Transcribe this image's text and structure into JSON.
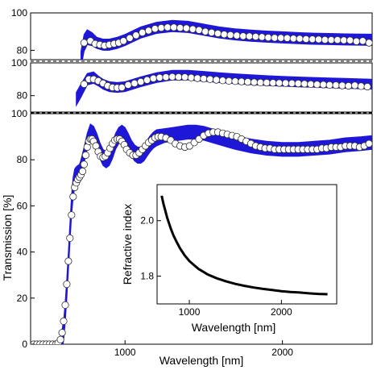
{
  "chart_data": [
    {
      "type": "scatter",
      "panel": "top",
      "ylim": [
        75,
        100
      ],
      "xlim": [
        400,
        2570
      ],
      "y_ticks": [
        "100",
        "80"
      ],
      "tick_values": [
        100,
        80
      ],
      "series": [
        {
          "kind": "band",
          "color": "#1f17d8",
          "x": [
            720,
            740,
            760,
            790,
            820,
            860,
            900,
            950,
            1000,
            1100,
            1200,
            1300,
            1400,
            1500,
            1600,
            1700,
            1800,
            1900,
            2000,
            2100,
            2200,
            2300,
            2400,
            2500,
            2570
          ],
          "y": [
            75,
            84,
            87,
            86,
            84,
            83,
            83,
            84,
            85.5,
            89.5,
            92,
            93,
            92.5,
            91,
            89.5,
            88.5,
            87.8,
            87.3,
            86.9,
            86.5,
            86.2,
            86,
            85.8,
            85.7,
            85.6
          ],
          "width": [
            4.5,
            4.5,
            4,
            3.5,
            3,
            3,
            3,
            3,
            3,
            3,
            3,
            3,
            3,
            3,
            3,
            3,
            3,
            3,
            3,
            3,
            3,
            3,
            3,
            3,
            3
          ]
        },
        {
          "kind": "points",
          "color": "#ffffff",
          "x": [
            740,
            780,
            810,
            840,
            870,
            900,
            930,
            960,
            990,
            1030,
            1070,
            1110,
            1150,
            1190,
            1230,
            1270,
            1310,
            1350,
            1390,
            1430,
            1470,
            1510,
            1550,
            1590,
            1630,
            1670,
            1710,
            1750,
            1790,
            1830,
            1870,
            1910,
            1950,
            1990,
            2030,
            2070,
            2110,
            2150,
            2190,
            2230,
            2270,
            2310,
            2350,
            2390,
            2430,
            2470,
            2510,
            2550
          ],
          "y": [
            84,
            85,
            83.5,
            83,
            82.5,
            83,
            83.5,
            84,
            85,
            86.5,
            88,
            89.5,
            90.5,
            91.5,
            92,
            92.3,
            92.3,
            92,
            91.8,
            91.3,
            90.8,
            90,
            89.5,
            89,
            88.5,
            88.2,
            87.9,
            87.6,
            87.5,
            87.3,
            87.1,
            86.8,
            86.7,
            86.6,
            86.5,
            86.3,
            86.2,
            86,
            85.9,
            85.8,
            85.6,
            85.5,
            85.5,
            85.4,
            85.3,
            84.8,
            85,
            84
          ]
        }
      ]
    },
    {
      "type": "scatter",
      "panel": "middle",
      "ylim": [
        70,
        100
      ],
      "xlim": [
        400,
        2570
      ],
      "y_ticks": [
        "100",
        "80"
      ],
      "tick_values": [
        100,
        80
      ],
      "series": [
        {
          "kind": "band",
          "color": "#1f17d8",
          "x": [
            690,
            720,
            760,
            800,
            830,
            860,
            900,
            950,
            1000,
            1100,
            1200,
            1300,
            1400,
            1500,
            1600,
            1700,
            1800,
            1900,
            2000,
            2100,
            2200,
            2300,
            2400,
            2500,
            2570
          ],
          "y": [
            78,
            83,
            90,
            91,
            89,
            87,
            85.5,
            85,
            85.5,
            88.5,
            91,
            92.5,
            92.5,
            91.8,
            91,
            90.3,
            89.7,
            89.2,
            88.8,
            88.4,
            88.1,
            87.8,
            87.5,
            87.2,
            87
          ],
          "width": [
            4,
            4,
            3.5,
            3.5,
            3,
            3,
            3,
            3,
            3,
            3,
            3,
            3,
            3,
            3,
            3,
            3,
            3,
            3,
            3,
            3,
            3,
            3,
            3,
            3,
            3
          ]
        },
        {
          "kind": "points",
          "color": "#ffffff",
          "x": [
            740,
            770,
            800,
            830,
            860,
            890,
            920,
            950,
            980,
            1020,
            1060,
            1100,
            1140,
            1180,
            1220,
            1260,
            1300,
            1340,
            1380,
            1420,
            1460,
            1500,
            1540,
            1580,
            1620,
            1660,
            1700,
            1740,
            1780,
            1820,
            1860,
            1900,
            1940,
            1980,
            2020,
            2060,
            2100,
            2140,
            2180,
            2220,
            2260,
            2300,
            2340,
            2380,
            2420,
            2460,
            2500,
            2540
          ],
          "y": [
            87,
            90,
            90,
            89,
            87.5,
            86,
            85,
            84.8,
            85,
            86.5,
            87.5,
            88.5,
            89.5,
            90.5,
            91,
            91.3,
            91.5,
            91.4,
            91.3,
            91,
            90.6,
            90.3,
            90,
            89.6,
            89.3,
            89,
            88.8,
            88.6,
            88.4,
            88.2,
            88,
            87.9,
            87.8,
            87.7,
            87.6,
            87.5,
            87.4,
            87.2,
            87,
            86.8,
            86.7,
            86.5,
            86.4,
            86.2,
            86,
            86.3,
            85.8,
            85.5
          ]
        }
      ]
    },
    {
      "type": "scatter",
      "panel": "main",
      "xlabel": "Wavelength [nm]",
      "ylabel": "Transmission [%]",
      "xlim": [
        400,
        2570
      ],
      "ylim": [
        0,
        100
      ],
      "x_tick_values": [
        1000,
        2000
      ],
      "x_ticks": [
        "1000",
        "2000"
      ],
      "y_tick_values": [
        0,
        20,
        40,
        60,
        80,
        100
      ],
      "y_ticks": [
        "0",
        "20",
        "40",
        "60",
        "80",
        "100"
      ],
      "series": [
        {
          "kind": "band",
          "color": "#1f17d8",
          "x": [
            590,
            600,
            610,
            620,
            630,
            640,
            650,
            660,
            670,
            680,
            690,
            700,
            710,
            720,
            740,
            760,
            780,
            800,
            820,
            840,
            860,
            880,
            900,
            920,
            940,
            960,
            980,
            1000,
            1020,
            1040,
            1060,
            1080,
            1100,
            1120,
            1140,
            1160,
            1180,
            1200,
            1250,
            1300,
            1350,
            1400,
            1450,
            1500,
            1550,
            1600,
            1650,
            1700,
            1800,
            1900,
            2000,
            2100,
            2200,
            2300,
            2400,
            2500,
            2570
          ],
          "y": [
            0,
            2,
            6,
            14,
            24,
            36,
            48,
            60,
            68,
            72,
            73,
            73.5,
            74,
            76,
            82,
            88,
            92,
            91,
            88,
            84,
            81,
            80,
            81,
            84,
            88,
            90.5,
            91.5,
            90.5,
            88,
            85,
            83,
            82,
            82,
            83,
            85,
            87,
            88.5,
            89.5,
            90.5,
            91,
            91.5,
            92,
            92,
            91.5,
            90.5,
            89.5,
            88.5,
            87.5,
            86,
            85,
            84.5,
            84.5,
            85,
            85.5,
            86.5,
            87,
            87.5
          ],
          "width": [
            4,
            4.5,
            4.5,
            4.5,
            4.5,
            4.5,
            4.5,
            4.5,
            4.5,
            4,
            4,
            4,
            4,
            4,
            3.5,
            3.5,
            3.5,
            3.5,
            3.5,
            3.5,
            3.5,
            3.5,
            3.5,
            3.5,
            3.5,
            3.5,
            3.5,
            3.5,
            3.5,
            3.5,
            3.5,
            3.5,
            3.5,
            3.5,
            3.5,
            3.5,
            3.5,
            3.5,
            3,
            3,
            3,
            3,
            3,
            3,
            3,
            3,
            3,
            3,
            3,
            3,
            3,
            3,
            3,
            3,
            3,
            3,
            3
          ]
        },
        {
          "kind": "points",
          "color": "#ffffff",
          "x": [
            420,
            440,
            460,
            480,
            500,
            520,
            540,
            560,
            575,
            590,
            600,
            610,
            620,
            630,
            640,
            650,
            660,
            670,
            680,
            690,
            700,
            710,
            720,
            730,
            740,
            750,
            760,
            770,
            780,
            790,
            800,
            815,
            830,
            845,
            860,
            875,
            890,
            905,
            920,
            935,
            950,
            965,
            980,
            995,
            1010,
            1030,
            1050,
            1070,
            1090,
            1110,
            1130,
            1150,
            1170,
            1190,
            1210,
            1230,
            1260,
            1290,
            1320,
            1350,
            1380,
            1410,
            1440,
            1470,
            1500,
            1530,
            1560,
            1590,
            1620,
            1650,
            1680,
            1710,
            1740,
            1770,
            1800,
            1830,
            1860,
            1890,
            1920,
            1950,
            1980,
            2010,
            2040,
            2070,
            2100,
            2130,
            2160,
            2190,
            2220,
            2250,
            2280,
            2310,
            2340,
            2370,
            2400,
            2430,
            2460,
            2490,
            2520,
            2550
          ],
          "y": [
            0,
            0,
            0,
            0,
            0,
            0,
            0,
            0,
            0.5,
            2,
            5,
            10,
            17,
            26,
            36,
            46,
            56,
            64,
            68,
            70,
            71.5,
            72.5,
            73.5,
            75,
            78,
            82,
            85.5,
            88,
            89,
            89,
            88,
            86,
            83.5,
            81.5,
            81,
            81.5,
            83,
            85,
            87,
            88.5,
            89,
            89,
            88,
            86.5,
            84.5,
            83,
            82,
            82,
            83,
            84.5,
            86,
            87.5,
            88.5,
            89.5,
            90,
            90,
            89.5,
            88.5,
            87,
            86,
            85.5,
            86,
            87.5,
            89,
            90.5,
            91.5,
            92,
            92,
            91.5,
            91,
            90.5,
            90,
            89,
            88,
            87,
            86,
            85.5,
            85,
            85,
            84.5,
            84.5,
            84.5,
            84.5,
            84.5,
            84.5,
            84.5,
            84.5,
            84.5,
            84.5,
            85,
            85,
            85.5,
            85.5,
            85.5,
            86,
            86,
            86,
            85.5,
            86,
            87
          ]
        }
      ]
    },
    {
      "type": "line",
      "panel": "inset",
      "xlabel": "Wavelength [nm]",
      "ylabel": "Refractive index",
      "xlim": [
        650,
        2600
      ],
      "ylim": [
        1.7,
        2.13
      ],
      "x_tick_values": [
        1000,
        2000
      ],
      "x_ticks": [
        "1000",
        "2000"
      ],
      "y_tick_values": [
        1.8,
        2.0
      ],
      "y_ticks": [
        "1.8",
        "2.0"
      ],
      "series": [
        {
          "color": "#000000",
          "x": [
            700,
            720,
            740,
            760,
            780,
            800,
            830,
            860,
            900,
            950,
            1000,
            1050,
            1100,
            1200,
            1300,
            1400,
            1500,
            1600,
            1700,
            1800,
            1900,
            2000,
            2100,
            2200,
            2300,
            2400,
            2500
          ],
          "y": [
            2.09,
            2.06,
            2.035,
            2.01,
            1.99,
            1.97,
            1.945,
            1.925,
            1.9,
            1.875,
            1.855,
            1.84,
            1.826,
            1.806,
            1.792,
            1.781,
            1.772,
            1.765,
            1.759,
            1.754,
            1.75,
            1.746,
            1.743,
            1.741,
            1.738,
            1.736,
            1.735
          ]
        }
      ]
    }
  ]
}
